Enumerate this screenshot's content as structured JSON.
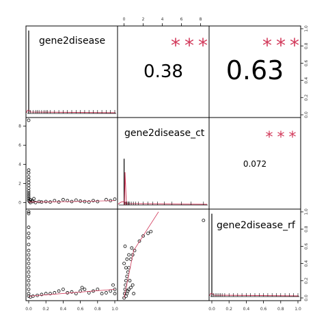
{
  "chart_data": {
    "type": "scatter",
    "variables": [
      "gene2disease",
      "gene2disease_ct",
      "gene2disease_rf"
    ],
    "correlations": [
      {
        "pair": [
          "gene2disease",
          "gene2disease_ct"
        ],
        "value": "0.38",
        "stars": "***"
      },
      {
        "pair": [
          "gene2disease",
          "gene2disease_rf"
        ],
        "value": "0.63",
        "stars": "***"
      },
      {
        "pair": [
          "gene2disease_ct",
          "gene2disease_rf"
        ],
        "value": "0.072",
        "stars": "***"
      }
    ],
    "axes": {
      "gene2disease": {
        "ticks": [
          "0.0",
          "0.2",
          "0.4",
          "0.6",
          "0.8",
          "1.0"
        ],
        "range": [
          0,
          1
        ]
      },
      "gene2disease_ct": {
        "ticks": [
          "0",
          "2",
          "4",
          "6",
          "8"
        ],
        "range": [
          -0.4,
          8.6
        ]
      },
      "gene2disease_rf": {
        "ticks": [
          "0.0",
          "0.2",
          "0.4",
          "0.6",
          "0.8",
          "1.0"
        ],
        "range": [
          0,
          1
        ]
      }
    },
    "scatter_gene2disease_vs_ct": [
      [
        0.0,
        8.6
      ],
      [
        0.0,
        3.4
      ],
      [
        0.0,
        3.1
      ],
      [
        0.0,
        2.7
      ],
      [
        0.0,
        2.4
      ],
      [
        0.0,
        2.1
      ],
      [
        0.0,
        1.8
      ],
      [
        0.0,
        1.5
      ],
      [
        0.0,
        1.2
      ],
      [
        0.0,
        1.0
      ],
      [
        0.0,
        0.8
      ],
      [
        0.0,
        0.6
      ],
      [
        0.0,
        0.4
      ],
      [
        0.0,
        0.2
      ],
      [
        0.01,
        0.1
      ],
      [
        0.02,
        0.0
      ],
      [
        0.05,
        0.1
      ],
      [
        0.08,
        0.0
      ],
      [
        0.12,
        0.1
      ],
      [
        0.15,
        0.05
      ],
      [
        0.2,
        0.1
      ],
      [
        0.25,
        0.05
      ],
      [
        0.3,
        0.2
      ],
      [
        0.35,
        0.05
      ],
      [
        0.4,
        0.3
      ],
      [
        0.45,
        0.2
      ],
      [
        0.5,
        0.1
      ],
      [
        0.55,
        0.25
      ],
      [
        0.6,
        0.15
      ],
      [
        0.65,
        0.1
      ],
      [
        0.7,
        0.05
      ],
      [
        0.75,
        0.2
      ],
      [
        0.8,
        0.1
      ],
      [
        0.9,
        0.3
      ],
      [
        0.95,
        0.2
      ],
      [
        1.0,
        0.35
      ],
      [
        0.02,
        0.3
      ],
      [
        0.04,
        0.2
      ],
      [
        0.06,
        0.4
      ]
    ],
    "scatter_gene2disease_vs_rf": [
      [
        0.0,
        1.0
      ],
      [
        0.0,
        0.98
      ],
      [
        0.0,
        0.82
      ],
      [
        0.0,
        0.75
      ],
      [
        0.0,
        0.7
      ],
      [
        0.0,
        0.62
      ],
      [
        0.0,
        0.55
      ],
      [
        0.0,
        0.5
      ],
      [
        0.0,
        0.45
      ],
      [
        0.0,
        0.4
      ],
      [
        0.0,
        0.35
      ],
      [
        0.0,
        0.3
      ],
      [
        0.0,
        0.25
      ],
      [
        0.0,
        0.2
      ],
      [
        0.0,
        0.15
      ],
      [
        0.0,
        0.1
      ],
      [
        0.0,
        0.05
      ],
      [
        0.0,
        0.02
      ],
      [
        0.02,
        0.01
      ],
      [
        0.05,
        0.02
      ],
      [
        0.1,
        0.03
      ],
      [
        0.15,
        0.04
      ],
      [
        0.2,
        0.05
      ],
      [
        0.25,
        0.05
      ],
      [
        0.3,
        0.06
      ],
      [
        0.35,
        0.08
      ],
      [
        0.4,
        0.1
      ],
      [
        0.45,
        0.06
      ],
      [
        0.5,
        0.07
      ],
      [
        0.55,
        0.05
      ],
      [
        0.6,
        0.08
      ],
      [
        0.65,
        0.1
      ],
      [
        0.7,
        0.06
      ],
      [
        0.75,
        0.08
      ],
      [
        0.8,
        0.1
      ],
      [
        0.85,
        0.05
      ],
      [
        0.9,
        0.06
      ],
      [
        0.95,
        0.08
      ],
      [
        1.0,
        0.1
      ],
      [
        1.0,
        0.05
      ],
      [
        0.98,
        0.15
      ],
      [
        0.62,
        0.12
      ]
    ],
    "scatter_ct_vs_rf": [
      [
        0.0,
        0.0
      ],
      [
        0.05,
        0.05
      ],
      [
        0.1,
        0.1
      ],
      [
        0.15,
        0.15
      ],
      [
        0.2,
        0.2
      ],
      [
        0.3,
        0.25
      ],
      [
        0.4,
        0.3
      ],
      [
        0.5,
        0.35
      ],
      [
        0.7,
        0.45
      ],
      [
        0.9,
        0.5
      ],
      [
        1.1,
        0.55
      ],
      [
        0.3,
        0.05
      ],
      [
        0.5,
        0.1
      ],
      [
        0.7,
        0.12
      ],
      [
        0.2,
        0.35
      ],
      [
        0.1,
        0.6
      ],
      [
        0.8,
        0.58
      ],
      [
        1.6,
        0.66
      ],
      [
        2.0,
        0.72
      ],
      [
        2.5,
        0.75
      ],
      [
        2.8,
        0.77
      ],
      [
        0.6,
        0.2
      ],
      [
        0.4,
        0.08
      ],
      [
        0.2,
        0.02
      ],
      [
        0.0,
        0.4
      ],
      [
        0.3,
        0.45
      ],
      [
        0.5,
        0.5
      ],
      [
        8.3,
        0.9
      ],
      [
        0.9,
        0.15
      ],
      [
        1.0,
        0.05
      ]
    ],
    "rug_gene2disease": [
      0.0,
      0.02,
      0.05,
      0.08,
      0.1,
      0.12,
      0.15,
      0.18,
      0.2,
      0.22,
      0.25,
      0.3,
      0.35,
      0.4,
      0.45,
      0.5,
      0.55,
      0.6,
      0.65,
      0.7,
      0.75,
      0.8,
      0.85,
      0.9,
      0.95,
      1.0
    ],
    "rug_ct": [
      0.0,
      0.05,
      0.1,
      0.2,
      0.3,
      0.4,
      0.5,
      0.6,
      0.8,
      1.0,
      1.2,
      1.5,
      2.0,
      2.5,
      3.0,
      3.5,
      4.2,
      5.0,
      6.0,
      7.0,
      8.3
    ],
    "rug_rf": [
      0.0,
      0.02,
      0.04,
      0.06,
      0.08,
      0.1,
      0.12,
      0.15,
      0.2,
      0.25,
      0.3,
      0.35,
      0.4,
      0.45,
      0.5,
      0.55,
      0.6,
      0.65,
      0.7,
      0.75,
      0.8,
      0.85,
      0.9,
      0.95,
      1.0
    ],
    "grid": false,
    "colors": {
      "density": "#d23a5b",
      "stars": "#d23a5b",
      "points": "#000000"
    }
  }
}
